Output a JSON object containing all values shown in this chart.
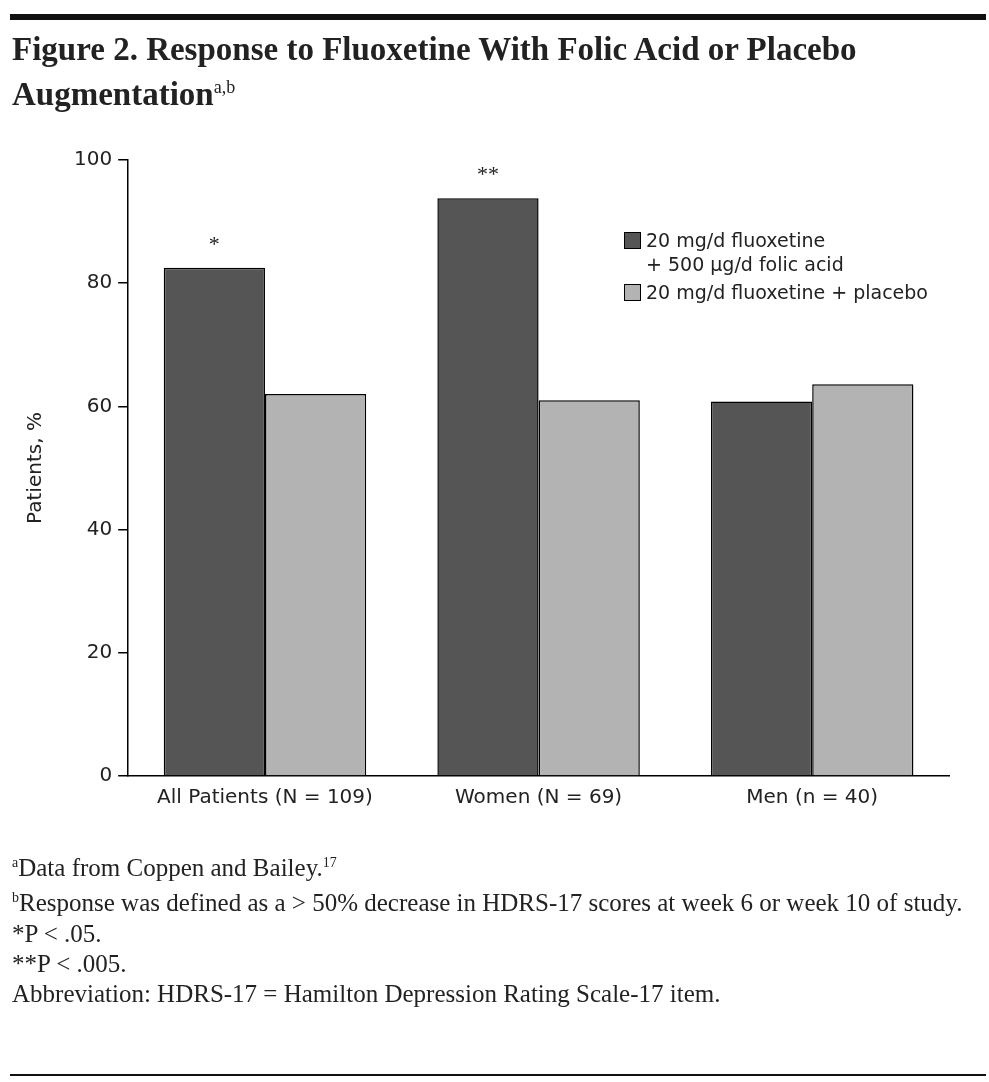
{
  "chart_data": {
    "type": "bar",
    "title": "Figure 2. Response to Fluoxetine With Folic Acid or Placebo Augmentation$^{a,b}$",
    "ylabel": "Patients, %",
    "categories": [
      "All Patients (N = 109)",
      "Women (N = 69)",
      "Men (n = 40)"
    ],
    "series": [
      {
        "name": "20 mg/d fluoxetine\n+ 500 μg/d folic acid",
        "color": "#555555",
        "values": [
          82.5,
          93.8,
          60.8
        ]
      },
      {
        "name": "20 mg/d fluoxetine + placebo",
        "color": "#b3b3b3",
        "values": [
          62.0,
          61.0,
          63.6
        ]
      }
    ],
    "ylim": [
      0,
      100
    ],
    "yticks": [
      0,
      20,
      40,
      60,
      80,
      100
    ],
    "grid": false,
    "legend": "top right",
    "annotations": [
      {
        "text": "*",
        "x": "All Patients (N = 109)",
        "y": 82.5
      },
      {
        "text": "**",
        "x": "Women (N = 69)",
        "y": 93.8
      },
      "$^{a}$Data from Coppen and Bailey.$^{17}$",
      "$^{b}$Response was defined as a > 50% decrease in HDRS-17 scores at week 6 or week 10 of study.",
      "*P < .05.",
      "**P < .005.",
      "Abbreviation: HDRS-17 = Hamilton Depression Rating Scale-17 item."
    ]
  }
}
